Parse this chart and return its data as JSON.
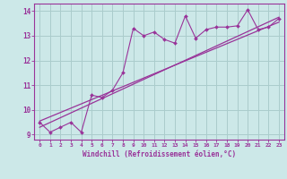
{
  "xlabel": "Windchill (Refroidissement éolien,°C)",
  "xlim": [
    -0.5,
    23.5
  ],
  "ylim": [
    8.8,
    14.3
  ],
  "yticks": [
    9,
    10,
    11,
    12,
    13,
    14
  ],
  "xticks": [
    0,
    1,
    2,
    3,
    4,
    5,
    6,
    7,
    8,
    9,
    10,
    11,
    12,
    13,
    14,
    15,
    16,
    17,
    18,
    19,
    20,
    21,
    22,
    23
  ],
  "bg_color": "#cce8e8",
  "line_color": "#993399",
  "grid_color": "#aacccc",
  "line1_x": [
    0,
    1,
    2,
    3,
    4,
    5,
    6,
    7,
    8,
    9,
    10,
    11,
    12,
    13,
    14,
    15,
    16,
    17,
    18,
    19,
    20,
    21,
    22,
    23
  ],
  "line1_y": [
    9.5,
    9.1,
    9.3,
    9.5,
    9.1,
    10.6,
    10.5,
    10.8,
    11.5,
    13.3,
    13.0,
    13.15,
    12.85,
    12.7,
    13.8,
    12.9,
    13.25,
    13.35,
    13.35,
    13.4,
    14.05,
    13.25,
    13.35,
    13.7
  ],
  "reg_line1_x": [
    0,
    23
  ],
  "reg_line1_y": [
    9.3,
    13.75
  ],
  "reg_line2_x": [
    0,
    23
  ],
  "reg_line2_y": [
    9.55,
    13.55
  ]
}
